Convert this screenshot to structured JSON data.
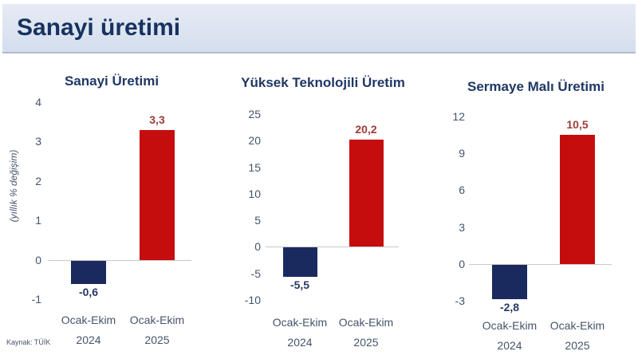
{
  "header": {
    "title": "Sanayi üretimi"
  },
  "footer": {
    "source": "Kaynak: TÜİK"
  },
  "colors": {
    "bar_negative": "#1b2a5e",
    "bar_positive": "#c60d0e",
    "label_negative": "#263a63",
    "label_positive": "#9e3a38",
    "title_text": "#1f3864",
    "axis_text": "#44546a",
    "header_text": "#16325f"
  },
  "y_axis_label": "(yıllık % değişim)",
  "chart_data": [
    {
      "type": "bar",
      "title": "Sanayi Üretimi",
      "categories": [
        [
          "Ocak-Ekim",
          "2024"
        ],
        [
          "Ocak-Ekim",
          "2025"
        ]
      ],
      "values": [
        -0.6,
        3.3
      ],
      "value_labels": [
        "-0,6",
        "3,3"
      ],
      "bar_colors": [
        "#1b2a5e",
        "#c60d0e"
      ],
      "value_label_colors": [
        "#263a63",
        "#9e3a38"
      ],
      "xlabel": "",
      "ylabel": "(yıllık % değişim)",
      "ylim": [
        -1,
        4
      ],
      "ytick_step": 1,
      "grid": false,
      "legend_position": "none"
    },
    {
      "type": "bar",
      "title": "Yüksek Teknolojili Üretim",
      "categories": [
        [
          "Ocak-Ekim",
          "2024"
        ],
        [
          "Ocak-Ekim",
          "2025"
        ]
      ],
      "values": [
        -5.5,
        20.2
      ],
      "value_labels": [
        "-5,5",
        "20,2"
      ],
      "bar_colors": [
        "#1b2a5e",
        "#c60d0e"
      ],
      "value_label_colors": [
        "#263a63",
        "#9e3a38"
      ],
      "xlabel": "",
      "ylabel": "",
      "ylim": [
        -10,
        25
      ],
      "ytick_step": 5,
      "grid": false,
      "legend_position": "none"
    },
    {
      "type": "bar",
      "title": "Sermaye Malı Üretimi",
      "categories": [
        [
          "Ocak-Ekim",
          "2024"
        ],
        [
          "Ocak-Ekim",
          "2025"
        ]
      ],
      "values": [
        -2.8,
        10.5
      ],
      "value_labels": [
        "-2,8",
        "10,5"
      ],
      "bar_colors": [
        "#1b2a5e",
        "#c60d0e"
      ],
      "value_label_colors": [
        "#263a63",
        "#9e3a38"
      ],
      "xlabel": "",
      "ylabel": "",
      "ylim": [
        -3,
        12
      ],
      "ytick_step": 3,
      "grid": false,
      "legend_position": "none"
    }
  ]
}
